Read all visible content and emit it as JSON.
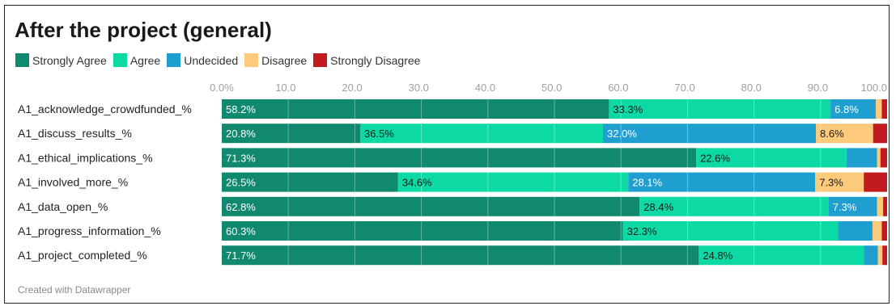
{
  "title": "After the project (general)",
  "credit": "Created with Datawrapper",
  "colors": {
    "strongly_agree": "#10896f",
    "agree": "#0cd9a3",
    "undecided": "#1f9fd0",
    "disagree": "#fdc97a",
    "strongly_disagree": "#c21a1f"
  },
  "chart_data": {
    "type": "bar",
    "orientation": "horizontal",
    "stacked": true,
    "title": "After the project (general)",
    "xlim": [
      0,
      100
    ],
    "ticks": [
      0,
      10,
      20,
      30,
      40,
      50,
      60,
      70,
      80,
      90,
      100
    ],
    "tick_labels": [
      "0.0%",
      "10.0",
      "20.0",
      "30.0",
      "40.0",
      "50.0",
      "60.0",
      "70.0",
      "80.0",
      "90.0",
      "100.0"
    ],
    "grid": true,
    "legend_position": "top",
    "categories": [
      "A1_acknowledge_crowdfunded_%",
      "A1_discuss_results_%",
      "A1_ethical_implications_%",
      "A1_involved_more_%",
      "A1_data_open_%",
      "A1_progress_information_%",
      "A1_project_completed_%"
    ],
    "series": [
      {
        "name": "Strongly Agree",
        "color": "#10896f",
        "values": [
          58.2,
          20.8,
          71.3,
          26.5,
          62.8,
          60.3,
          71.7
        ],
        "labels": [
          "58.2%",
          "20.8%",
          "71.3%",
          "26.5%",
          "62.8%",
          "60.3%",
          "71.7%"
        ]
      },
      {
        "name": "Agree",
        "color": "#0cd9a3",
        "values": [
          33.3,
          36.5,
          22.6,
          34.6,
          28.4,
          32.3,
          24.8
        ],
        "labels": [
          "33.3%",
          "36.5%",
          "22.6%",
          "34.6%",
          "28.4%",
          "32.3%",
          "24.8%"
        ]
      },
      {
        "name": "Undecided",
        "color": "#1f9fd0",
        "values": [
          6.8,
          32.0,
          4.6,
          28.1,
          7.3,
          5.2,
          2.1
        ],
        "labels": [
          "6.8%",
          "32.0%",
          "",
          "28.1%",
          "7.3%",
          "",
          ""
        ]
      },
      {
        "name": "Disagree",
        "color": "#fdc97a",
        "values": [
          0.9,
          8.6,
          0.5,
          7.3,
          0.9,
          1.4,
          0.7
        ],
        "labels": [
          "",
          "8.6%",
          "",
          "7.3%",
          "",
          "",
          ""
        ]
      },
      {
        "name": "Strongly Disagree",
        "color": "#c21a1f",
        "values": [
          0.8,
          2.1,
          1.0,
          3.5,
          0.6,
          0.8,
          0.7
        ],
        "labels": [
          "",
          "",
          "",
          "",
          "",
          "",
          ""
        ]
      }
    ]
  }
}
